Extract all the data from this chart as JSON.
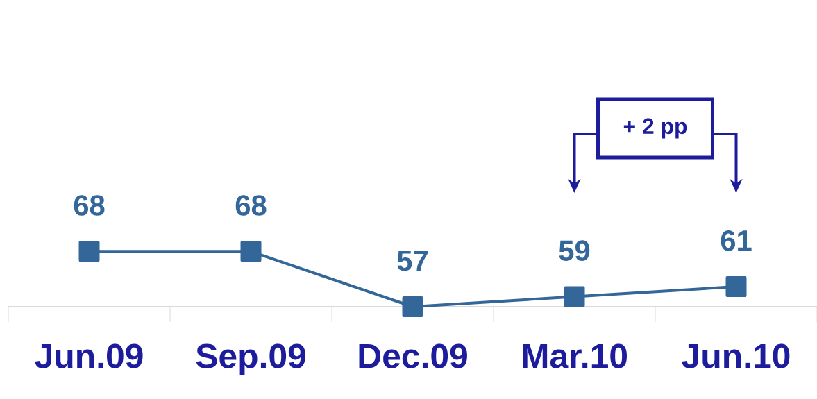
{
  "chart_data": {
    "type": "line",
    "categories": [
      "Jun.09",
      "Sep.09",
      "Dec.09",
      "Mar.10",
      "Jun.10"
    ],
    "values": [
      68,
      68,
      57,
      59,
      61
    ],
    "color": "#336699",
    "marker": "square",
    "line_style": "solid",
    "data_labels": true,
    "tick_labels": "x",
    "grid": false,
    "annotations": [
      "+ 2 pp"
    ]
  }
}
